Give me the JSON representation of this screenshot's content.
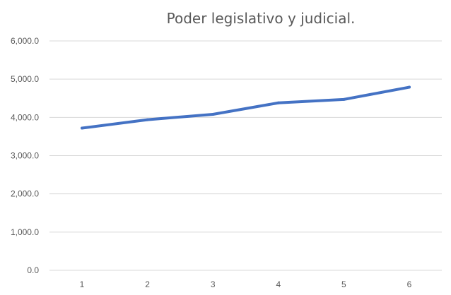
{
  "chart_data": {
    "type": "line",
    "title": "Poder legislativo y judicial.",
    "x": [
      "1",
      "2",
      "3",
      "4",
      "5",
      "6"
    ],
    "series": [
      {
        "values": [
          3720,
          3940,
          4080,
          4380,
          4470,
          4790
        ],
        "color": "#4472c4"
      }
    ],
    "ylim": [
      0,
      6000
    ],
    "yticks": [
      "0.0",
      "1,000.0",
      "2,000.0",
      "3,000.0",
      "4,000.0",
      "5,000.0",
      "6,000.0"
    ],
    "ytick_values": [
      0,
      1000,
      2000,
      3000,
      4000,
      5000,
      6000
    ],
    "grid": true,
    "legend": "none"
  }
}
